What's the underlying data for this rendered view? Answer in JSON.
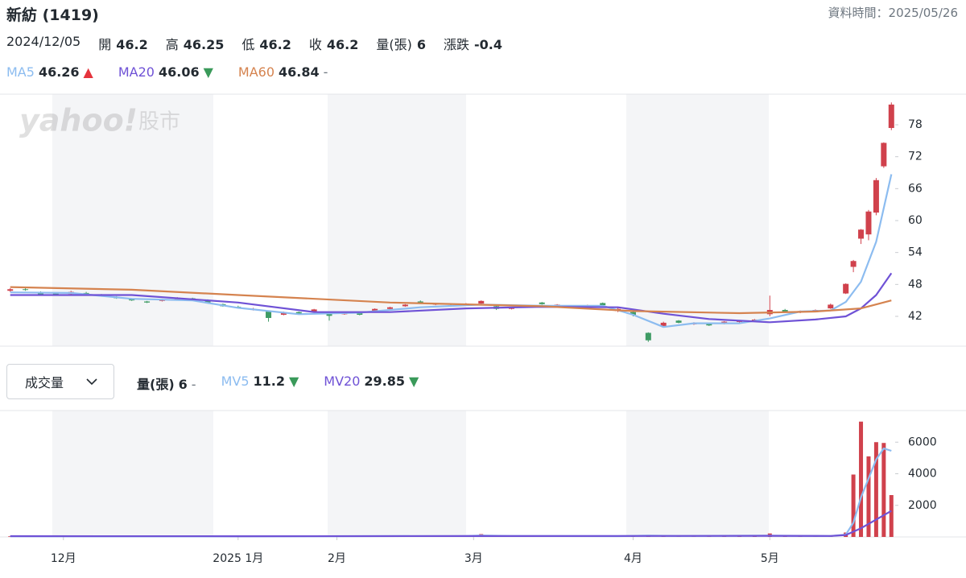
{
  "header": {
    "title": "新紡 (1419)",
    "timestamp": "資料時間：2025/05/26",
    "date": "2024/12/05",
    "quote": [
      {
        "label": "開",
        "value": "46.2"
      },
      {
        "label": "高",
        "value": "46.25"
      },
      {
        "label": "低",
        "value": "46.2"
      },
      {
        "label": "收",
        "value": "46.2"
      },
      {
        "label": "量(張)",
        "value": "6"
      },
      {
        "label": "漲跌",
        "value": "-0.4"
      }
    ]
  },
  "watermark": {
    "logo": "yahoo!",
    "text": "股市"
  },
  "volume_selector": "成交量",
  "chart_data": [
    {
      "type": "candlestick",
      "up_color": "#d0414c",
      "down_color": "#3e9b64",
      "x": [
        0,
        2,
        4,
        6,
        8,
        10,
        12,
        14,
        16,
        18,
        20,
        22,
        24,
        26,
        28,
        30,
        32,
        34,
        36,
        38,
        40,
        42,
        44,
        46,
        48,
        50,
        52,
        54,
        56,
        58,
        60,
        62,
        64,
        66,
        68,
        70,
        72,
        74,
        76,
        78,
        80,
        82,
        84,
        86,
        88,
        90,
        92,
        94,
        96,
        98,
        100,
        102,
        104,
        106,
        108,
        110,
        111,
        112,
        113,
        114,
        115,
        116
      ],
      "ohlc": [
        [
          46.8,
          47.3,
          46.6,
          47.1
        ],
        [
          47.1,
          47.4,
          46.8,
          47.0
        ],
        [
          46.6,
          46.7,
          45.9,
          46.1
        ],
        [
          46.3,
          46.5,
          45.9,
          46.2
        ],
        [
          46.2,
          46.8,
          46.1,
          46.6
        ],
        [
          46.4,
          46.6,
          46.1,
          46.3
        ],
        [
          46.1,
          46.2,
          45.8,
          46.0
        ],
        [
          45.7,
          45.8,
          45.3,
          45.4
        ],
        [
          45.3,
          45.4,
          44.9,
          45.0
        ],
        [
          44.8,
          44.9,
          44.5,
          44.6
        ],
        [
          44.9,
          45.3,
          44.8,
          45.2
        ],
        [
          45.1,
          45.6,
          45.0,
          45.5
        ],
        [
          45.4,
          45.5,
          45.1,
          45.2
        ],
        [
          45.1,
          45.2,
          44.5,
          44.6
        ],
        [
          44.3,
          44.4,
          43.8,
          43.9
        ],
        [
          43.8,
          44.0,
          43.5,
          43.6
        ],
        [
          43.2,
          43.6,
          43.1,
          43.4
        ],
        [
          42.9,
          43.0,
          41.0,
          41.7
        ],
        [
          42.3,
          42.9,
          42.2,
          42.8
        ],
        [
          42.8,
          42.9,
          42.4,
          42.5
        ],
        [
          42.9,
          43.4,
          42.8,
          43.3
        ],
        [
          42.6,
          42.7,
          41.2,
          42.1
        ],
        [
          42.4,
          42.9,
          42.3,
          42.8
        ],
        [
          42.6,
          42.7,
          42.2,
          42.3
        ],
        [
          43.0,
          43.5,
          42.9,
          43.4
        ],
        [
          43.4,
          43.8,
          43.3,
          43.7
        ],
        [
          43.9,
          44.3,
          43.8,
          44.2
        ],
        [
          44.8,
          45.0,
          44.4,
          44.5
        ],
        [
          44.2,
          44.5,
          44.1,
          44.4
        ],
        [
          44.1,
          44.2,
          43.8,
          43.9
        ],
        [
          44.1,
          44.5,
          44.0,
          44.4
        ],
        [
          44.4,
          45.0,
          44.3,
          44.9
        ],
        [
          43.9,
          44.0,
          43.2,
          43.4
        ],
        [
          43.4,
          43.7,
          43.3,
          43.6
        ],
        [
          43.7,
          44.1,
          43.6,
          44.0
        ],
        [
          44.6,
          44.7,
          44.2,
          44.3
        ],
        [
          44.0,
          44.3,
          43.9,
          44.2
        ],
        [
          43.9,
          44.0,
          43.6,
          43.7
        ],
        [
          43.9,
          44.2,
          43.8,
          44.1
        ],
        [
          44.5,
          44.6,
          43.9,
          44.1
        ],
        [
          43.0,
          43.6,
          42.8,
          43.4
        ],
        [
          42.8,
          43.0,
          42.0,
          42.3
        ],
        [
          38.9,
          39.0,
          37.2,
          37.5
        ],
        [
          40.2,
          41.0,
          40.0,
          40.8
        ],
        [
          41.2,
          41.3,
          40.7,
          40.8
        ],
        [
          40.5,
          40.9,
          40.4,
          40.7
        ],
        [
          40.6,
          40.7,
          40.2,
          40.3
        ],
        [
          40.6,
          41.1,
          40.5,
          41.0
        ],
        [
          41.0,
          41.3,
          40.8,
          41.1
        ],
        [
          41.1,
          41.5,
          41.0,
          41.4
        ],
        [
          42.4,
          45.9,
          42.0,
          43.2
        ],
        [
          43.2,
          43.4,
          42.7,
          42.8
        ],
        [
          42.8,
          43.1,
          42.6,
          43.0
        ],
        [
          42.9,
          43.3,
          42.8,
          43.2
        ],
        [
          43.5,
          44.4,
          43.4,
          44.2
        ],
        [
          46.3,
          48.2,
          46.2,
          48.1
        ],
        [
          51.3,
          52.6,
          50.3,
          52.4
        ],
        [
          56.6,
          58.4,
          55.6,
          58.3
        ],
        [
          57.4,
          62.0,
          56.3,
          61.7
        ],
        [
          61.5,
          68.0,
          61.0,
          67.6
        ],
        [
          70.2,
          74.7,
          69.9,
          74.6
        ],
        [
          77.4,
          82.2,
          77.0,
          81.8
        ]
      ],
      "xlim": [
        -0.5,
        116.5
      ],
      "ylim": [
        36.4,
        83.75
      ],
      "yticks": [
        42,
        48,
        54,
        60,
        66,
        72,
        78
      ],
      "lines": [
        {
          "name": "MA5",
          "color": "#8cbcf0",
          "legend_value": "46.26",
          "legend_marker": "▲",
          "marker_color": "#e5343d",
          "x": [
            0,
            8,
            16,
            24,
            30,
            38,
            46,
            54,
            62,
            70,
            78,
            82,
            86,
            90,
            96,
            100,
            104,
            108,
            110,
            112,
            114,
            116
          ],
          "values": [
            46.5,
            46.4,
            45.3,
            45.0,
            43.6,
            42.4,
            42.7,
            43.7,
            44.2,
            44.0,
            44.0,
            42.3,
            40.0,
            40.7,
            40.7,
            41.6,
            42.9,
            43.1,
            44.7,
            48.5,
            56.0,
            68.7
          ]
        },
        {
          "name": "MA20",
          "color": "#6f52d6",
          "legend_value": "46.06",
          "legend_marker": "▼",
          "marker_color": "#3a9a5a",
          "x": [
            0,
            16,
            30,
            40,
            50,
            60,
            70,
            80,
            86,
            92,
            100,
            106,
            110,
            112,
            114,
            116
          ],
          "values": [
            46.0,
            46.0,
            44.6,
            42.8,
            42.8,
            43.5,
            43.8,
            43.7,
            42.5,
            41.5,
            40.9,
            41.4,
            42.0,
            43.5,
            46.0,
            50.1
          ]
        },
        {
          "name": "MA60",
          "color": "#d5834f",
          "legend_value": "46.84",
          "legend_marker": "-",
          "marker_color": "#6e7780",
          "x": [
            0,
            16,
            30,
            50,
            70,
            82,
            96,
            106,
            112,
            116
          ],
          "values": [
            47.5,
            47.0,
            46.0,
            44.6,
            43.9,
            43.0,
            42.6,
            42.9,
            43.5,
            45.0
          ]
        }
      ]
    },
    {
      "type": "bar",
      "color": "#d0414c",
      "x": [
        0,
        2,
        4,
        6,
        8,
        10,
        12,
        14,
        16,
        18,
        20,
        22,
        24,
        26,
        28,
        30,
        32,
        34,
        36,
        38,
        40,
        42,
        44,
        46,
        48,
        50,
        52,
        54,
        56,
        58,
        60,
        62,
        64,
        66,
        68,
        70,
        72,
        74,
        76,
        78,
        80,
        82,
        84,
        86,
        88,
        90,
        92,
        94,
        96,
        98,
        100,
        102,
        104,
        106,
        108,
        110,
        111,
        112,
        113,
        114,
        115,
        116
      ],
      "values": [
        40,
        30,
        35,
        25,
        30,
        20,
        25,
        30,
        35,
        40,
        30,
        25,
        30,
        40,
        45,
        35,
        50,
        60,
        40,
        35,
        30,
        55,
        40,
        35,
        45,
        50,
        40,
        35,
        30,
        40,
        45,
        180,
        60,
        40,
        35,
        45,
        40,
        30,
        35,
        50,
        60,
        70,
        90,
        60,
        50,
        40,
        45,
        40,
        35,
        50,
        220,
        70,
        50,
        45,
        60,
        280,
        3950,
        7300,
        5100,
        6000,
        5950,
        2650
      ],
      "xlim": [
        -0.5,
        116.5
      ],
      "ylim": [
        0,
        8000
      ],
      "yticks": [
        2000,
        4000,
        6000
      ],
      "xticks": [
        {
          "value": 7,
          "label": "12月"
        },
        {
          "value": 30,
          "label": "2025 1月"
        },
        {
          "value": 43,
          "label": "2月"
        },
        {
          "value": 61,
          "label": "3月"
        },
        {
          "value": 82,
          "label": "4月"
        },
        {
          "value": 100,
          "label": "5月"
        }
      ],
      "legend": {
        "label": "量(張)",
        "value": "6",
        "marker": "-",
        "marker_color": "#6e7780"
      },
      "lines": [
        {
          "name": "MV5",
          "color": "#8cbcf0",
          "legend_value": "11.2",
          "legend_marker": "▼",
          "marker_color": "#3a9a5a",
          "x": [
            0,
            20,
            40,
            60,
            62,
            66,
            80,
            84,
            88,
            100,
            104,
            108,
            110,
            111,
            112,
            113,
            114,
            115,
            116
          ],
          "values": [
            40,
            35,
            45,
            60,
            90,
            60,
            50,
            80,
            60,
            80,
            70,
            60,
            150,
            900,
            2500,
            3700,
            4900,
            5600,
            5450
          ]
        },
        {
          "name": "MV20",
          "color": "#6f52d6",
          "legend_value": "29.85",
          "legend_marker": "▼",
          "marker_color": "#3a9a5a",
          "x": [
            0,
            30,
            60,
            80,
            100,
            108,
            110,
            112,
            114,
            116
          ],
          "values": [
            50,
            45,
            55,
            60,
            70,
            60,
            120,
            550,
            1100,
            1650
          ]
        }
      ]
    }
  ]
}
